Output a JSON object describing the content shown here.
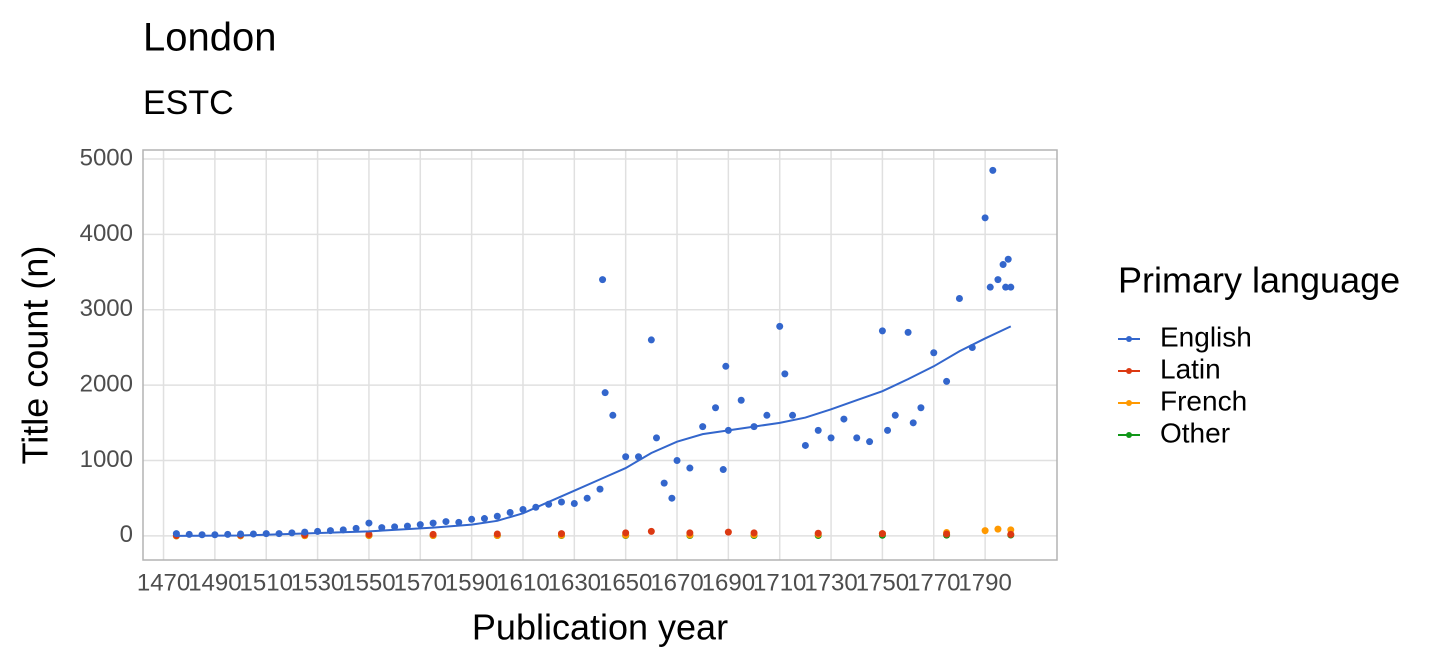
{
  "chart_data": {
    "type": "scatter",
    "title": "London",
    "subtitle": "ESTC",
    "x_label": "Publication year",
    "y_label": "Title count (n)",
    "legend_title": "Primary language",
    "legend_position": "right",
    "grid": true,
    "xlim": [
      1462,
      1818
    ],
    "xticks": [
      1470,
      1490,
      1510,
      1530,
      1550,
      1570,
      1590,
      1610,
      1630,
      1650,
      1670,
      1690,
      1710,
      1730,
      1750,
      1770,
      1790
    ],
    "ylim": [
      -320,
      5120
    ],
    "yticks": [
      0,
      1000,
      2000,
      3000,
      4000,
      5000
    ],
    "series": [
      {
        "name": "English",
        "color": "#3366cc",
        "x": [
          1475,
          1480,
          1485,
          1490,
          1495,
          1500,
          1505,
          1510,
          1515,
          1520,
          1525,
          1530,
          1535,
          1540,
          1545,
          1550,
          1555,
          1560,
          1565,
          1570,
          1575,
          1580,
          1585,
          1590,
          1595,
          1600,
          1605,
          1610,
          1615,
          1620,
          1625,
          1630,
          1635,
          1640,
          1641,
          1642,
          1645,
          1650,
          1655,
          1660,
          1662,
          1665,
          1668,
          1670,
          1675,
          1680,
          1685,
          1688,
          1689,
          1690,
          1695,
          1700,
          1705,
          1710,
          1712,
          1715,
          1720,
          1725,
          1730,
          1735,
          1740,
          1745,
          1750,
          1752,
          1755,
          1760,
          1762,
          1765,
          1770,
          1775,
          1780,
          1785,
          1790,
          1792,
          1793,
          1795,
          1797,
          1798,
          1799,
          1800
        ],
        "values": [
          30,
          20,
          15,
          15,
          20,
          25,
          25,
          30,
          30,
          40,
          50,
          60,
          70,
          80,
          100,
          170,
          110,
          120,
          130,
          150,
          170,
          190,
          180,
          220,
          230,
          260,
          310,
          350,
          380,
          420,
          450,
          430,
          500,
          620,
          3400,
          1900,
          1600,
          1050,
          1050,
          2600,
          1300,
          700,
          500,
          1000,
          900,
          1450,
          1700,
          880,
          2250,
          1400,
          1800,
          1450,
          1600,
          2780,
          2150,
          1600,
          1200,
          1400,
          1300,
          1550,
          1300,
          1250,
          2720,
          1400,
          1600,
          2700,
          1500,
          1700,
          2430,
          2050,
          3150,
          2500,
          4220,
          3300,
          4850,
          3400,
          3600,
          3300,
          3670,
          3300
        ]
      },
      {
        "name": "Latin",
        "color": "#dc3912",
        "x": [
          1475,
          1500,
          1525,
          1550,
          1575,
          1600,
          1625,
          1650,
          1660,
          1675,
          1690,
          1700,
          1725,
          1750,
          1775,
          1800
        ],
        "values": [
          5,
          10,
          15,
          20,
          20,
          25,
          30,
          40,
          60,
          40,
          50,
          40,
          35,
          30,
          25,
          20
        ]
      },
      {
        "name": "French",
        "color": "#ff9900",
        "x": [
          1475,
          1500,
          1525,
          1550,
          1575,
          1600,
          1625,
          1650,
          1675,
          1700,
          1725,
          1750,
          1775,
          1790,
          1795,
          1800
        ],
        "values": [
          0,
          2,
          3,
          5,
          5,
          5,
          8,
          10,
          12,
          15,
          20,
          30,
          45,
          70,
          90,
          80
        ]
      },
      {
        "name": "Other",
        "color": "#109618",
        "x": [
          1475,
          1500,
          1525,
          1550,
          1575,
          1600,
          1625,
          1650,
          1675,
          1700,
          1725,
          1750,
          1775,
          1800
        ],
        "values": [
          0,
          2,
          3,
          4,
          5,
          5,
          5,
          5,
          5,
          5,
          5,
          8,
          10,
          12
        ]
      }
    ],
    "smooth": {
      "color": "#3366cc",
      "x": [
        1475,
        1500,
        1550,
        1575,
        1590,
        1600,
        1610,
        1620,
        1630,
        1640,
        1650,
        1660,
        1670,
        1680,
        1690,
        1700,
        1710,
        1720,
        1730,
        1740,
        1750,
        1760,
        1770,
        1780,
        1790,
        1800
      ],
      "values": [
        0,
        5,
        60,
        110,
        150,
        200,
        300,
        450,
        600,
        750,
        900,
        1100,
        1250,
        1350,
        1400,
        1450,
        1500,
        1570,
        1680,
        1800,
        1920,
        2080,
        2250,
        2450,
        2620,
        2780
      ]
    }
  }
}
